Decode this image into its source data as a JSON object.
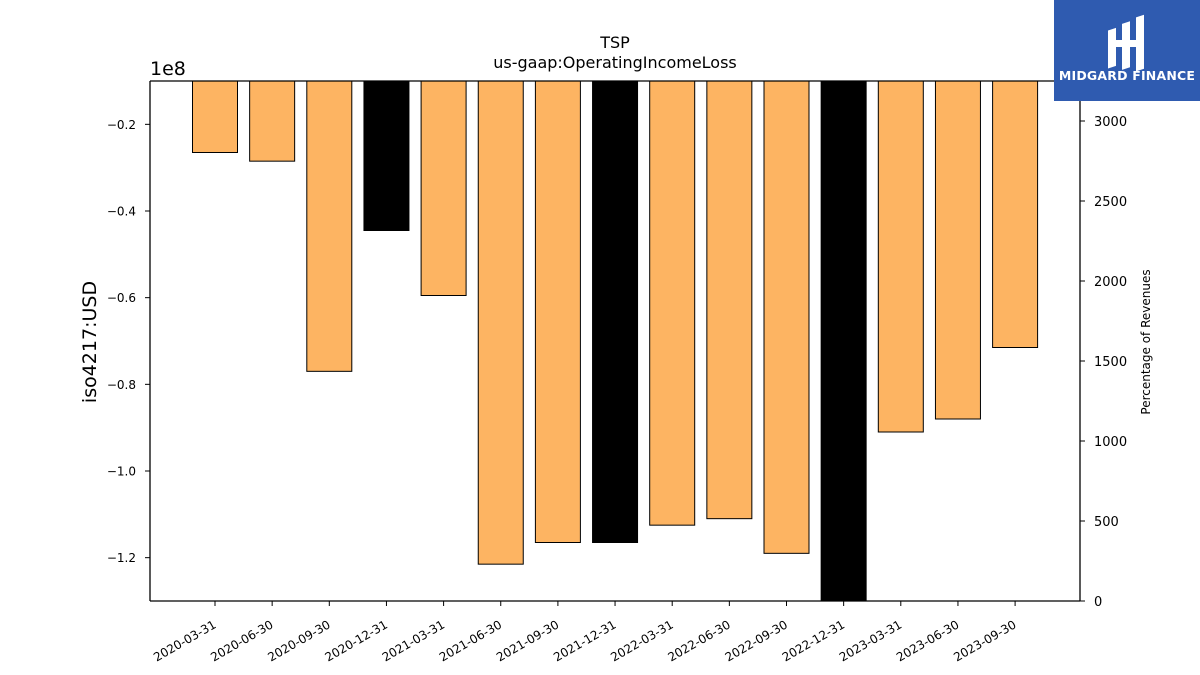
{
  "chart_data": {
    "type": "bar",
    "title": "TSP",
    "subtitle": "us-gaap:OperatingIncomeLoss",
    "ylabel": "iso4217:USD",
    "y2label": "Percentage of Revenues",
    "y_scale_label": "1e8",
    "y_scale_factor": 100000000,
    "ylim": [
      -1.3,
      -0.1
    ],
    "yticks": [
      -0.2,
      -0.4,
      -0.6,
      -0.8,
      -1.0,
      -1.2
    ],
    "ytick_labels": [
      "−0.2",
      "−0.4",
      "−0.6",
      "−0.8",
      "−1.0",
      "−1.2"
    ],
    "y2lim": [
      0,
      3250
    ],
    "y2ticks": [
      0,
      500,
      1000,
      1500,
      2000,
      2500,
      3000
    ],
    "y2tick_labels": [
      "0",
      "500",
      "1000",
      "1500",
      "2000",
      "2500",
      "3000"
    ],
    "categories": [
      "2020-03-31",
      "2020-06-30",
      "2020-09-30",
      "2020-12-31",
      "2021-03-31",
      "2021-06-30",
      "2021-09-30",
      "2021-12-31",
      "2022-03-31",
      "2022-06-30",
      "2022-09-30",
      "2022-12-31",
      "2023-03-31",
      "2023-06-30",
      "2023-09-30"
    ],
    "values": [
      -0.265,
      -0.285,
      -0.77,
      -0.445,
      -0.595,
      -1.215,
      -1.165,
      -1.165,
      -1.125,
      -1.11,
      -1.19,
      -1.3,
      -0.91,
      -0.88,
      -0.715
    ],
    "bar_colors": [
      "#FDB462",
      "#FDB462",
      "#FDB462",
      "#000000",
      "#FDB462",
      "#FDB462",
      "#FDB462",
      "#000000",
      "#FDB462",
      "#FDB462",
      "#FDB462",
      "#000000",
      "#FDB462",
      "#FDB462",
      "#FDB462"
    ],
    "grid": false
  },
  "logo": {
    "text": "MIDGARD FINANCE",
    "background": "#2F5BB0",
    "foreground": "#FFFFFF"
  }
}
